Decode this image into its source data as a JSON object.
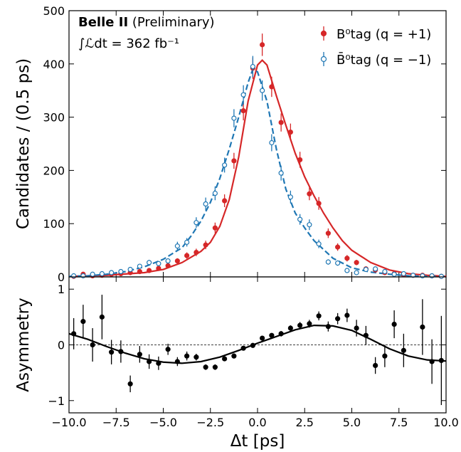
{
  "chart_data": [
    {
      "type": "errorbar",
      "ylabel": "Candidates / (0.5 ps)",
      "annotations": {
        "experiment": "Belle II",
        "status": "(Preliminary)",
        "luminosity": "∫ℒdt = 362 fb⁻¹"
      },
      "legend": "upper right",
      "xlim": [
        -10,
        10
      ],
      "xticks": [
        -10,
        -7.5,
        -5,
        -2.5,
        0,
        2.5,
        5,
        7.5,
        10
      ],
      "ylim": [
        0,
        500
      ],
      "yticks": [
        0,
        100,
        200,
        300,
        400,
        500
      ],
      "x": [
        -9.75,
        -9.25,
        -8.75,
        -8.25,
        -7.75,
        -7.25,
        -6.75,
        -6.25,
        -5.75,
        -5.25,
        -4.75,
        -4.25,
        -3.75,
        -3.25,
        -2.75,
        -2.25,
        -1.75,
        -1.25,
        -0.75,
        -0.25,
        0.25,
        0.75,
        1.25,
        1.75,
        2.25,
        2.75,
        3.25,
        3.75,
        4.25,
        4.75,
        5.25,
        5.75,
        6.25,
        6.75,
        7.25,
        7.75,
        8.25,
        8.75,
        9.25,
        9.75
      ],
      "series": [
        {
          "name": "B⁰tag (q = +1)",
          "color": "#d62728",
          "marker": "filled",
          "values": [
            1,
            5,
            2,
            3,
            5,
            6,
            8,
            10,
            12,
            16,
            21,
            30,
            40,
            46,
            60,
            92,
            143,
            218,
            312,
            392,
            436,
            357,
            290,
            272,
            220,
            156,
            138,
            82,
            56,
            35,
            27,
            15,
            13,
            8,
            6,
            4,
            3,
            3,
            2,
            1
          ],
          "errors": [
            1,
            2,
            1,
            2,
            2,
            2,
            3,
            3,
            3,
            4,
            5,
            5,
            6,
            7,
            8,
            10,
            12,
            15,
            18,
            20,
            21,
            19,
            17,
            16,
            15,
            12,
            12,
            9,
            7,
            6,
            5,
            4,
            4,
            3,
            2,
            2,
            2,
            2,
            1,
            1
          ]
        },
        {
          "name": "B̄⁰tag (q = −1)",
          "color": "#1f77b4",
          "marker": "open",
          "values": [
            2,
            2,
            5,
            6,
            8,
            10,
            14,
            20,
            27,
            25,
            30,
            58,
            65,
            102,
            137,
            157,
            210,
            298,
            342,
            395,
            350,
            252,
            195,
            150,
            108,
            98,
            62,
            28,
            26,
            12,
            8,
            14,
            15,
            10,
            5,
            6,
            3,
            2,
            2,
            1
          ],
          "errors": [
            1,
            1,
            2,
            2,
            3,
            3,
            4,
            4,
            5,
            5,
            5,
            8,
            8,
            10,
            12,
            13,
            14,
            17,
            18,
            20,
            19,
            16,
            14,
            12,
            10,
            10,
            8,
            5,
            5,
            3,
            3,
            4,
            4,
            3,
            2,
            2,
            2,
            1,
            1,
            1
          ]
        }
      ],
      "fits": [
        {
          "color": "#d62728",
          "style": "solid",
          "x": [
            -10,
            -8,
            -6,
            -5,
            -4,
            -3,
            -2.5,
            -2,
            -1.5,
            -1,
            -0.5,
            0,
            0.25,
            0.5,
            1,
            1.5,
            2,
            2.5,
            3,
            3.5,
            4,
            4.5,
            5,
            6,
            7,
            8,
            9,
            10
          ],
          "values": [
            1,
            3,
            8,
            14,
            27,
            48,
            65,
            95,
            145,
            225,
            330,
            398,
            407,
            398,
            340,
            285,
            232,
            188,
            152,
            120,
            92,
            68,
            50,
            27,
            13,
            6,
            3,
            1
          ]
        },
        {
          "color": "#1f77b4",
          "style": "dashed",
          "x": [
            -10,
            -9,
            -8,
            -7,
            -6,
            -5,
            -4,
            -3.5,
            -3,
            -2.5,
            -2,
            -1.5,
            -1,
            -0.5,
            -0.25,
            0,
            0.5,
            1,
            1.5,
            2,
            2.5,
            3,
            4,
            5,
            6,
            7,
            8,
            9,
            10
          ],
          "values": [
            1,
            2,
            5,
            10,
            19,
            33,
            55,
            78,
            105,
            140,
            185,
            240,
            300,
            365,
            390,
            385,
            330,
            240,
            165,
            120,
            92,
            68,
            35,
            17,
            9,
            5,
            2,
            1,
            1
          ]
        }
      ]
    },
    {
      "type": "errorbar",
      "ylabel": "Asymmetry",
      "xlabel": "Δt [ps]",
      "hline": 0,
      "xlim": [
        -10,
        10
      ],
      "xticks": [
        {
          "value": -10,
          "label": "−10.0"
        },
        {
          "value": -7.5,
          "label": "−7.5"
        },
        {
          "value": -5,
          "label": "−5.0"
        },
        {
          "value": -2.5,
          "label": "−2.5"
        },
        {
          "value": 0,
          "label": "0.0"
        },
        {
          "value": 2.5,
          "label": "2.5"
        },
        {
          "value": 5,
          "label": "5.0"
        },
        {
          "value": 7.5,
          "label": "7.5"
        },
        {
          "value": 10,
          "label": "10.0"
        }
      ],
      "ylim": [
        -1.22,
        1.22
      ],
      "yticks": [
        {
          "value": -1,
          "label": "−1"
        },
        0,
        1
      ],
      "x": [
        -9.75,
        -9.25,
        -8.75,
        -8.25,
        -7.75,
        -7.25,
        -6.75,
        -6.25,
        -5.75,
        -5.25,
        -4.75,
        -4.25,
        -3.75,
        -3.25,
        -2.75,
        -2.25,
        -1.75,
        -1.25,
        -0.75,
        -0.25,
        0.25,
        0.75,
        1.25,
        1.75,
        2.25,
        2.75,
        3.25,
        3.75,
        4.25,
        4.75,
        5.25,
        5.75,
        6.25,
        6.75,
        7.25,
        7.75,
        8.25,
        8.75,
        9.25,
        9.75
      ],
      "series": [
        {
          "color": "#000000",
          "marker": "filled",
          "values": [
            0.2,
            0.42,
            0.0,
            0.5,
            -0.13,
            -0.12,
            -0.7,
            -0.17,
            -0.3,
            -0.33,
            -0.08,
            -0.3,
            -0.2,
            -0.22,
            -0.4,
            -0.4,
            -0.25,
            -0.2,
            -0.06,
            -0.01,
            0.12,
            0.17,
            0.2,
            0.3,
            0.35,
            0.38,
            0.52,
            0.33,
            0.47,
            0.53,
            0.3,
            0.17,
            -0.37,
            -0.2,
            0.37,
            -0.1,
            null,
            0.32,
            -0.3,
            -0.28
          ],
          "errors": [
            0.28,
            0.3,
            0.3,
            0.4,
            0.22,
            0.2,
            0.15,
            0.15,
            0.13,
            0.12,
            0.1,
            0.08,
            0.08,
            0.06,
            0.05,
            0.05,
            0.04,
            0.04,
            0.03,
            0.03,
            0.03,
            0.04,
            0.05,
            0.05,
            0.06,
            0.07,
            0.08,
            0.09,
            0.1,
            0.12,
            0.15,
            0.17,
            0.15,
            0.2,
            0.25,
            0.3,
            null,
            0.5,
            0.4,
            0.8
          ]
        }
      ],
      "fits": [
        {
          "color": "#000000",
          "style": "solid",
          "x": [
            -10,
            -9,
            -8,
            -7,
            -6,
            -5,
            -4,
            -3,
            -2,
            -1,
            0,
            1,
            2,
            3,
            4,
            5,
            6,
            7,
            8,
            9,
            10
          ],
          "values": [
            0.2,
            0.1,
            -0.03,
            -0.15,
            -0.25,
            -0.31,
            -0.33,
            -0.3,
            -0.22,
            -0.1,
            0.03,
            0.15,
            0.27,
            0.35,
            0.34,
            0.26,
            0.1,
            -0.07,
            -0.2,
            -0.27,
            -0.29
          ]
        }
      ]
    }
  ]
}
